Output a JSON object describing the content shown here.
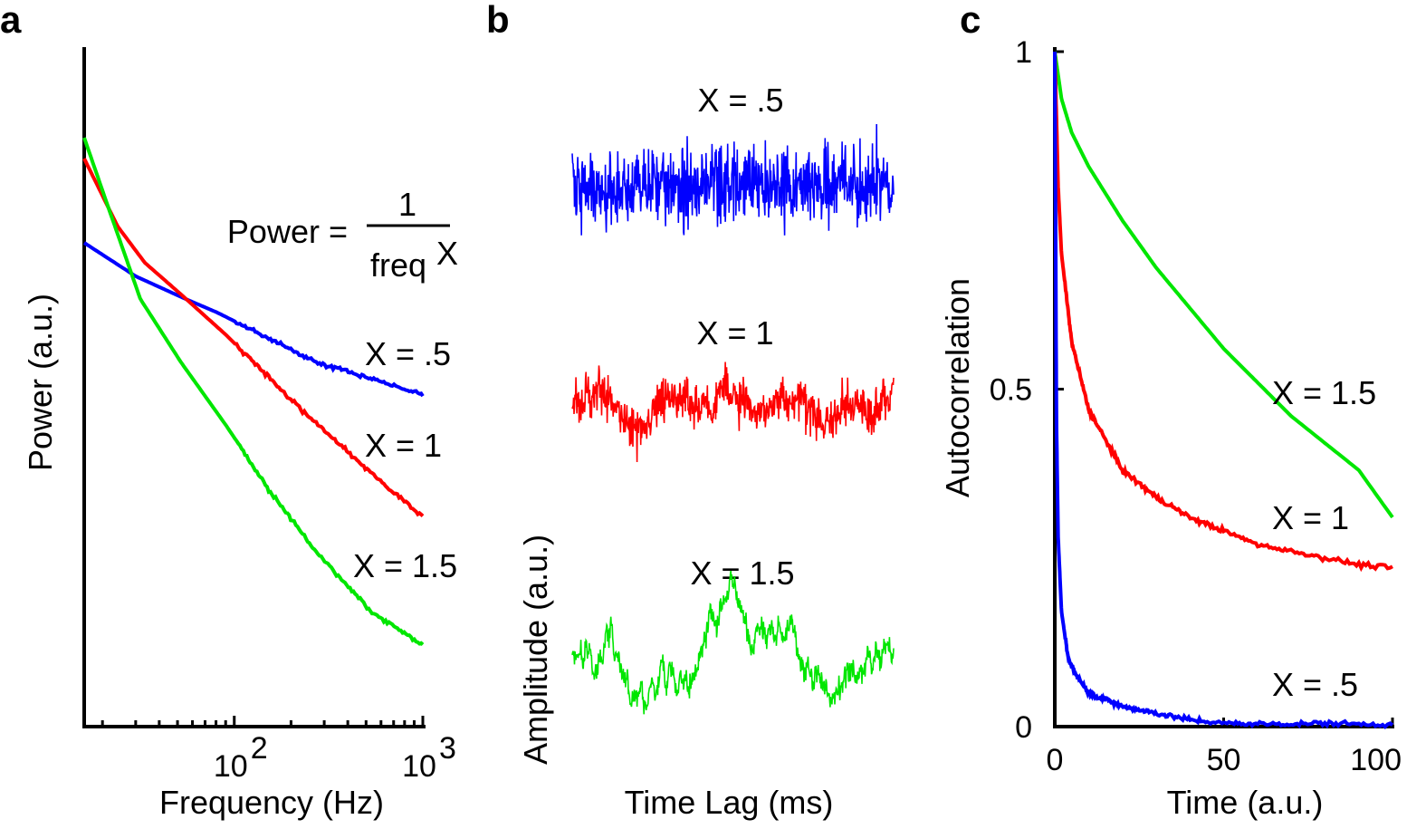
{
  "colors": {
    "blue": "#0000ff",
    "red": "#ff0000",
    "green": "#00e600",
    "axis": "#000000"
  },
  "chart_data": [
    {
      "panel": "a",
      "type": "line",
      "xscale": "log",
      "yscale": "log",
      "xlabel": "Frequency (Hz)",
      "ylabel": "Power (a.u.)",
      "xlim": [
        16,
        1000
      ],
      "x_ticks": [
        {
          "value": 100,
          "base": "10",
          "exp": "2"
        },
        {
          "value": 1000,
          "base": "10",
          "exp": "3"
        }
      ],
      "formula": {
        "lhs": "Power =",
        "numerator": "1",
        "denominator": "freq",
        "exponent": "X"
      },
      "series": [
        {
          "name": "X = .5",
          "exponent": 0.5,
          "color": "#0000ff",
          "x_range": [
            16,
            1000
          ]
        },
        {
          "name": "X = 1",
          "exponent": 1.0,
          "color": "#ff0000",
          "x_range": [
            16,
            1000
          ]
        },
        {
          "name": "X = 1.5",
          "exponent": 1.5,
          "color": "#00e600",
          "x_range": [
            16,
            1000
          ]
        }
      ]
    },
    {
      "panel": "b",
      "type": "line",
      "xlabel": "Time Lag (ms)",
      "ylabel": "Amplitude (a.u.)",
      "series": [
        {
          "name": "X = .5",
          "exponent": 0.5,
          "color": "#0000ff"
        },
        {
          "name": "X = 1",
          "exponent": 1.0,
          "color": "#ff0000"
        },
        {
          "name": "X = 1.5",
          "exponent": 1.5,
          "color": "#00e600"
        }
      ]
    },
    {
      "panel": "c",
      "type": "line",
      "xlabel": "Time (a.u.)",
      "ylabel": "Autocorrelation",
      "xlim": [
        0,
        100
      ],
      "ylim": [
        0,
        1
      ],
      "x_ticks": [
        {
          "value": 0,
          "label": "0"
        },
        {
          "value": 50,
          "label": "50"
        },
        {
          "value": 100,
          "label": "100"
        }
      ],
      "y_ticks": [
        {
          "value": 0,
          "label": "0"
        },
        {
          "value": 0.5,
          "label": "0.5"
        },
        {
          "value": 1,
          "label": "1"
        }
      ],
      "series": [
        {
          "name": "X = 1.5",
          "color": "#00e600",
          "x": [
            0,
            2,
            5,
            10,
            20,
            30,
            40,
            50,
            60,
            70,
            80,
            90,
            100
          ],
          "y": [
            1.0,
            0.93,
            0.88,
            0.83,
            0.75,
            0.68,
            0.62,
            0.56,
            0.51,
            0.46,
            0.42,
            0.38,
            0.31
          ]
        },
        {
          "name": "X = 1",
          "color": "#ff0000",
          "x": [
            0,
            1,
            2,
            5,
            10,
            20,
            30,
            40,
            50,
            60,
            70,
            80,
            90,
            100
          ],
          "y": [
            1.0,
            0.8,
            0.7,
            0.57,
            0.47,
            0.38,
            0.34,
            0.31,
            0.29,
            0.27,
            0.26,
            0.25,
            0.24,
            0.235
          ]
        },
        {
          "name": "X = .5",
          "color": "#0000ff",
          "x": [
            0,
            0.5,
            1,
            2,
            4,
            6,
            10,
            20,
            30,
            40,
            50,
            60,
            70,
            80,
            90,
            100
          ],
          "y": [
            1.0,
            0.45,
            0.28,
            0.17,
            0.1,
            0.08,
            0.05,
            0.03,
            0.02,
            0.01,
            0.005,
            0.004,
            0.004,
            0.005,
            0.004,
            0.003
          ]
        }
      ]
    }
  ]
}
